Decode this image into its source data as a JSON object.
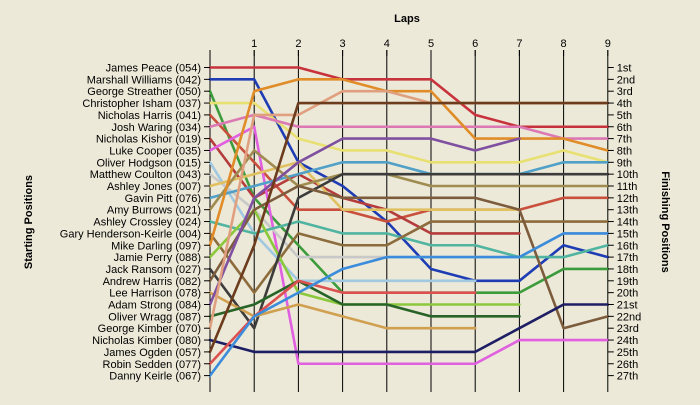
{
  "chart_data": {
    "type": "line",
    "title": "",
    "top_axis_label": "Laps",
    "left_axis_label": "Starting Positions",
    "right_axis_label": "Finishing Positions",
    "x": [
      0,
      1,
      2,
      3,
      4,
      5,
      6,
      7,
      8,
      9
    ],
    "x_tick_labels": [
      "1",
      "2",
      "3",
      "4",
      "5",
      "6",
      "7",
      "8",
      "9"
    ],
    "y_range": [
      1,
      27
    ],
    "y_inverted": true,
    "grid": "vertical",
    "finishing_labels": [
      "1st",
      "2nd",
      "3rd",
      "4th",
      "5th",
      "6th",
      "7th",
      "8th",
      "9th",
      "10th",
      "11th",
      "12th",
      "13th",
      "14th",
      "15th",
      "16th",
      "17th",
      "18th",
      "19th",
      "20th",
      "21st",
      "22nd",
      "23rd",
      "24th",
      "25th",
      "26th",
      "27th"
    ],
    "series": [
      {
        "name": "James Peace (054)",
        "color": "#c8323c",
        "values": [
          1,
          1,
          1,
          2,
          2,
          2,
          5,
          6,
          6,
          6
        ]
      },
      {
        "name": "Marshall Williams (042)",
        "color": "#1e3cb4",
        "values": [
          2,
          2,
          9,
          11,
          14,
          18,
          19,
          19,
          16,
          17
        ]
      },
      {
        "name": "George Streather (050)",
        "color": "#3c9c3c",
        "values": [
          3,
          12,
          16,
          20,
          20,
          20,
          20,
          20,
          18,
          18
        ]
      },
      {
        "name": "Christopher Isham (037)",
        "color": "#e8e070",
        "values": [
          4,
          4,
          7,
          8,
          8,
          9,
          9,
          9,
          8,
          9
        ]
      },
      {
        "name": "Nicholas Harris (041)",
        "color": "#c8503c",
        "values": [
          5,
          9,
          13,
          13,
          14,
          13,
          13,
          13,
          12,
          12
        ]
      },
      {
        "name": "Josh Waring (034)",
        "color": "#dc78b4",
        "values": [
          6,
          5,
          6,
          6,
          6,
          6,
          6,
          6,
          7,
          7
        ]
      },
      {
        "name": "Nicholas Kishor (019)",
        "color": "#b43c3c",
        "values": [
          7,
          12,
          10,
          12,
          13,
          15,
          15,
          15,
          null,
          null
        ]
      },
      {
        "name": "Luke Cooper (035)",
        "color": "#e060e0",
        "values": [
          8,
          6,
          26,
          26,
          26,
          26,
          26,
          24,
          24,
          24
        ]
      },
      {
        "name": "Oliver Hodgson (015)",
        "color": "#a0c8e0",
        "values": [
          9,
          15,
          19,
          19,
          19,
          19,
          19,
          null,
          null,
          null
        ]
      },
      {
        "name": "Matthew Coulton (043)",
        "color": "#c8c8c8",
        "values": [
          10,
          13,
          17,
          17,
          17,
          17,
          17,
          17,
          15,
          15
        ]
      },
      {
        "name": "Ashley Jones (007)",
        "color": "#e0c060",
        "values": [
          11,
          10,
          9,
          13,
          13,
          13,
          13,
          13,
          null,
          null
        ]
      },
      {
        "name": "Gavin Pitt (076)",
        "color": "#50a0c8",
        "values": [
          12,
          11,
          10,
          9,
          9,
          10,
          10,
          10,
          9,
          9
        ]
      },
      {
        "name": "Amy Burrows (021)",
        "color": "#a08c50",
        "values": [
          13,
          8,
          11,
          10,
          10,
          11,
          11,
          11,
          11,
          11
        ]
      },
      {
        "name": "Ashley Crossley (024)",
        "color": "#50b4a0",
        "values": [
          14,
          15,
          14,
          15,
          15,
          16,
          16,
          17,
          17,
          16
        ]
      },
      {
        "name": "Gary Henderson-Keirle (004)",
        "color": "#8c6c3c",
        "values": [
          15,
          20,
          15,
          16,
          16,
          14,
          14,
          14,
          14,
          14
        ]
      },
      {
        "name": "Mike Darling (097)",
        "color": "#e08c28",
        "values": [
          16,
          3,
          2,
          2,
          3,
          3,
          7,
          7,
          7,
          8
        ]
      },
      {
        "name": "Jamie Perry (088)",
        "color": "#8cc83c",
        "values": [
          17,
          13,
          20,
          21,
          21,
          21,
          21,
          21,
          null,
          null
        ]
      },
      {
        "name": "Jack Ransom (027)",
        "color": "#3c3c3c",
        "values": [
          18,
          23,
          12,
          10,
          10,
          10,
          10,
          10,
          10,
          10
        ]
      },
      {
        "name": "Andrew Harris (082)",
        "color": "#7c5c3c",
        "values": [
          19,
          13,
          11,
          12,
          12,
          12,
          12,
          13,
          23,
          22
        ]
      },
      {
        "name": "Lee Harrison (078)",
        "color": "#d0a050",
        "values": [
          20,
          22,
          21,
          22,
          23,
          23,
          23,
          null,
          null,
          null
        ]
      },
      {
        "name": "Adam Strong (084)",
        "color": "#8050a0",
        "values": [
          21,
          12,
          9,
          7,
          7,
          7,
          8,
          7,
          null,
          null
        ]
      },
      {
        "name": "Oliver Wragg (087)",
        "color": "#286428",
        "values": [
          22,
          21,
          19,
          21,
          21,
          22,
          22,
          22,
          null,
          null
        ]
      },
      {
        "name": "George Kimber (070)",
        "color": "#e0a080",
        "values": [
          23,
          5,
          5,
          3,
          3,
          4,
          4,
          4,
          4,
          4
        ]
      },
      {
        "name": "Nicholas Kimber (080)",
        "color": "#1e1e64",
        "values": [
          24,
          25,
          25,
          25,
          25,
          25,
          25,
          23,
          21,
          21
        ]
      },
      {
        "name": "James Ogden (057)",
        "color": "#6c3c1c",
        "values": [
          25,
          16,
          4,
          4,
          4,
          4,
          4,
          4,
          4,
          4
        ]
      },
      {
        "name": "Robin Sedden (077)",
        "color": "#dc5050",
        "values": [
          26,
          22,
          19,
          20,
          20,
          20,
          20,
          null,
          null,
          null
        ]
      },
      {
        "name": "Danny Keirle (067)",
        "color": "#3c8cdc",
        "values": [
          27,
          22,
          20,
          18,
          17,
          17,
          17,
          17,
          15,
          15
        ]
      }
    ]
  }
}
